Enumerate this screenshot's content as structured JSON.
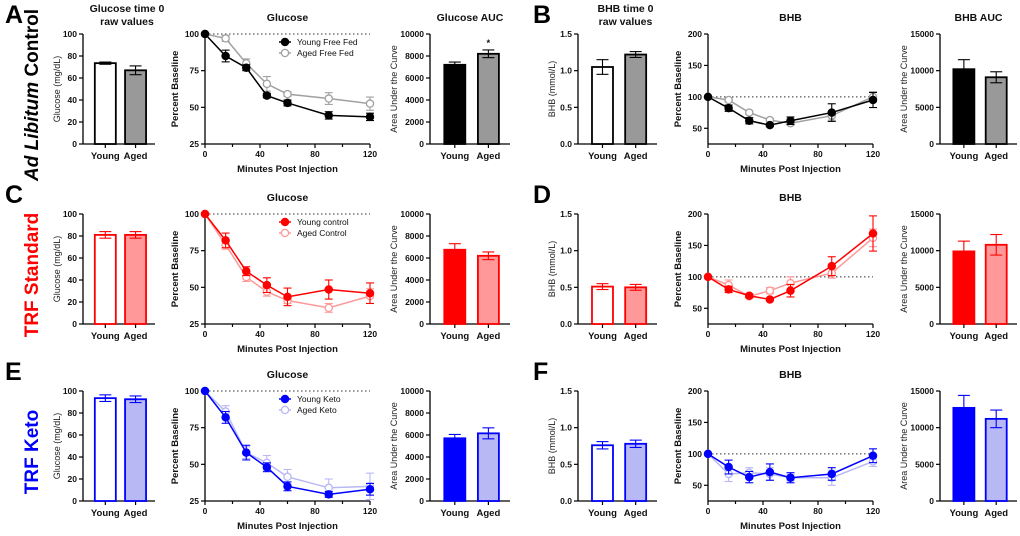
{
  "rows": [
    {
      "letters": [
        "A",
        "B"
      ],
      "label_parts": [
        {
          "text": "Ad Libitum",
          "italic": true
        },
        {
          "text": " Control",
          "italic": false
        }
      ],
      "color": "#000000"
    },
    {
      "letters": [
        "C",
        "D"
      ],
      "label_parts": [
        {
          "text": "TRF Standard",
          "italic": false
        }
      ],
      "color": "#ff0000"
    },
    {
      "letters": [
        "E",
        "F"
      ],
      "label_parts": [
        {
          "text": "TRF Keto",
          "italic": false
        }
      ],
      "color": "#0000ff"
    }
  ],
  "chart_data": [
    {
      "panel": "A",
      "type": "bar",
      "title": [
        "Glucose time 0",
        "raw values"
      ],
      "ylabel": "Glucose (mg/dL)",
      "ylim": [
        0,
        100
      ],
      "yticks": [
        "0",
        "20",
        "40",
        "60",
        "80",
        "100"
      ],
      "categories": [
        "Young",
        "Aged"
      ],
      "values": [
        73.5,
        67
      ],
      "errors": [
        1,
        4
      ],
      "fills": [
        "#ffffff",
        "#999999"
      ],
      "strokes": [
        "#000000",
        "#000000"
      ]
    },
    {
      "panel": "A",
      "type": "line",
      "title": [
        "Glucose"
      ],
      "ylabel": "Percent Baseline",
      "xlabel": "Minutes Post Injection",
      "ylim": [
        25,
        100
      ],
      "yticks": [
        "25",
        "50",
        "75",
        "100"
      ],
      "xlim": [
        0,
        120
      ],
      "xticks": [
        "0",
        "40",
        "80",
        "120"
      ],
      "reference_line": 100,
      "legend": true,
      "x": [
        0,
        15,
        30,
        45,
        60,
        90,
        120
      ],
      "series": [
        {
          "name": "Aged Free Fed",
          "color": "#a0a0a0",
          "marker": "open",
          "values": [
            100,
            97,
            80,
            66,
            59,
            56,
            52.5
          ],
          "errors": [
            0,
            2,
            3,
            5,
            1.5,
            4,
            4.5
          ]
        },
        {
          "name": "Young Free Fed",
          "color": "#000000",
          "marker": "filled",
          "values": [
            100,
            85,
            77,
            58,
            53,
            44.5,
            43.5
          ],
          "errors": [
            0,
            4,
            2,
            1.5,
            2,
            2.5,
            2.5
          ]
        }
      ]
    },
    {
      "panel": "A",
      "type": "bar",
      "title": [
        "Glucose AUC"
      ],
      "ylabel": "Area Under the Curve",
      "ylim": [
        0,
        10000
      ],
      "yticks": [
        "0",
        "2000",
        "4000",
        "6000",
        "8000",
        "10000"
      ],
      "categories": [
        "Young",
        "Aged"
      ],
      "values": [
        7200,
        8200
      ],
      "errors": [
        250,
        350
      ],
      "fills": [
        "#000000",
        "#999999"
      ],
      "strokes": [
        "#000000",
        "#000000"
      ],
      "annotations": [
        "",
        "*"
      ]
    },
    {
      "panel": "B",
      "type": "bar",
      "title": [
        "BHB time 0",
        "raw values"
      ],
      "ylabel": "BHB (mmol/L)",
      "ylim": [
        0,
        1.5
      ],
      "yticks": [
        "0.0",
        "0.5",
        "1.0",
        "1.5"
      ],
      "categories": [
        "Young",
        "Aged"
      ],
      "values": [
        1.05,
        1.22
      ],
      "errors": [
        0.1,
        0.04
      ],
      "fills": [
        "#ffffff",
        "#999999"
      ],
      "strokes": [
        "#000000",
        "#000000"
      ]
    },
    {
      "panel": "B",
      "type": "line",
      "title": [
        "BHB"
      ],
      "ylabel": "Percent Baseline",
      "xlabel": "Minutes Post Injection",
      "ylim": [
        25,
        200
      ],
      "yticks": [
        "50",
        "100",
        "150",
        "200"
      ],
      "xlim": [
        0,
        120
      ],
      "xticks": [
        "0",
        "40",
        "80",
        "120"
      ],
      "reference_line": 100,
      "legend": false,
      "x": [
        0,
        15,
        30,
        45,
        60,
        90,
        120
      ],
      "series": [
        {
          "name": "Aged Free Fed",
          "color": "#a0a0a0",
          "marker": "open",
          "values": [
            100,
            95,
            75,
            63,
            58,
            70,
            100
          ],
          "errors": [
            0,
            3,
            3,
            3,
            3,
            7,
            8
          ]
        },
        {
          "name": "Young Free Fed",
          "color": "#000000",
          "marker": "filled",
          "values": [
            100,
            82,
            62,
            55,
            62,
            75,
            95
          ],
          "errors": [
            0,
            5,
            5,
            2,
            6,
            14,
            12
          ]
        }
      ]
    },
    {
      "panel": "B",
      "type": "bar",
      "title": [
        "BHB AUC"
      ],
      "ylabel": "Area Under the Curve",
      "ylim": [
        0,
        15000
      ],
      "yticks": [
        "0",
        "5000",
        "10000",
        "15000"
      ],
      "categories": [
        "Young",
        "Aged"
      ],
      "values": [
        10200,
        9100
      ],
      "errors": [
        1300,
        750
      ],
      "fills": [
        "#000000",
        "#999999"
      ],
      "strokes": [
        "#000000",
        "#000000"
      ]
    },
    {
      "panel": "C",
      "type": "bar",
      "title": [],
      "ylabel": "Glucose (mg/dL)",
      "ylim": [
        0,
        100
      ],
      "yticks": [
        "0",
        "20",
        "40",
        "60",
        "80",
        "100"
      ],
      "categories": [
        "Young",
        "Aged"
      ],
      "values": [
        81,
        81
      ],
      "errors": [
        3,
        3
      ],
      "fills": [
        "#ffffff",
        "#ff9999"
      ],
      "strokes": [
        "#ff0000",
        "#ff0000"
      ]
    },
    {
      "panel": "C",
      "type": "line",
      "title": [
        "Glucose"
      ],
      "ylabel": "Percent Baseline",
      "xlabel": "Minutes Post Injection",
      "ylim": [
        25,
        100
      ],
      "yticks": [
        "25",
        "50",
        "75",
        "100"
      ],
      "xlim": [
        0,
        120
      ],
      "xticks": [
        "0",
        "40",
        "80",
        "120"
      ],
      "reference_line": 100,
      "legend": true,
      "x": [
        0,
        15,
        30,
        45,
        60,
        90,
        120
      ],
      "series": [
        {
          "name": "Aged Control",
          "color": "#ff9999",
          "marker": "open",
          "values": [
            100,
            79,
            57,
            47,
            41,
            36,
            44
          ],
          "errors": [
            0,
            3,
            3,
            3,
            2,
            3,
            5
          ]
        },
        {
          "name": "Young control",
          "color": "#ff0000",
          "marker": "filled",
          "values": [
            100,
            82,
            61,
            51.5,
            43.5,
            48.5,
            46
          ],
          "errors": [
            0,
            5,
            3,
            5,
            6,
            6.5,
            7
          ]
        }
      ]
    },
    {
      "panel": "C",
      "type": "bar",
      "title": [],
      "ylabel": "Area Under the Curve",
      "ylim": [
        0,
        10000
      ],
      "yticks": [
        "0",
        "2000",
        "4000",
        "6000",
        "8000",
        "10000"
      ],
      "categories": [
        "Young",
        "Aged"
      ],
      "values": [
        6750,
        6200
      ],
      "errors": [
        550,
        350
      ],
      "fills": [
        "#ff0000",
        "#ff9999"
      ],
      "strokes": [
        "#ff0000",
        "#ff0000"
      ]
    },
    {
      "panel": "D",
      "type": "bar",
      "title": [],
      "ylabel": "BHB (mmol/L)",
      "ylim": [
        0,
        1.5
      ],
      "yticks": [
        "0.0",
        "0.5",
        "1.0",
        "1.5"
      ],
      "categories": [
        "Young",
        "Aged"
      ],
      "values": [
        0.51,
        0.5
      ],
      "errors": [
        0.04,
        0.04
      ],
      "fills": [
        "#ffffff",
        "#ff9999"
      ],
      "strokes": [
        "#ff0000",
        "#ff0000"
      ]
    },
    {
      "panel": "D",
      "type": "line",
      "title": [
        "BHB"
      ],
      "ylabel": "Percent Baseline",
      "xlabel": "Minutes Post Injection",
      "ylim": [
        25,
        200
      ],
      "yticks": [
        "50",
        "100",
        "150",
        "200"
      ],
      "xlim": [
        0,
        120
      ],
      "xticks": [
        "0",
        "40",
        "80",
        "120"
      ],
      "reference_line": 100,
      "legend": false,
      "x": [
        0,
        15,
        30,
        45,
        60,
        90,
        120
      ],
      "series": [
        {
          "name": "Aged Control",
          "color": "#ff9999",
          "marker": "open",
          "values": [
            100,
            87,
            69,
            78,
            90,
            106,
            162
          ],
          "errors": [
            0,
            8,
            3,
            5,
            10,
            8,
            14
          ]
        },
        {
          "name": "Young control",
          "color": "#ff0000",
          "marker": "filled",
          "values": [
            100,
            80,
            70,
            64,
            78,
            117,
            169
          ],
          "errors": [
            0,
            5,
            3,
            2,
            10,
            15,
            28
          ]
        }
      ]
    },
    {
      "panel": "D",
      "type": "bar",
      "title": [],
      "ylabel": "Area Under the Curve",
      "ylim": [
        0,
        15000
      ],
      "yticks": [
        "0",
        "5000",
        "10000",
        "15000"
      ],
      "categories": [
        "Young",
        "Aged"
      ],
      "values": [
        9900,
        10800
      ],
      "errors": [
        1400,
        1400
      ],
      "fills": [
        "#ff0000",
        "#ff9999"
      ],
      "strokes": [
        "#ff0000",
        "#ff0000"
      ]
    },
    {
      "panel": "E",
      "type": "bar",
      "title": [],
      "ylabel": "Glucose (mg/dL)",
      "ylim": [
        0,
        100
      ],
      "yticks": [
        "0",
        "20",
        "40",
        "60",
        "80",
        "100"
      ],
      "categories": [
        "Young",
        "Aged"
      ],
      "values": [
        93.5,
        92.5
      ],
      "errors": [
        3,
        3
      ],
      "fills": [
        "#ffffff",
        "#b8b8f5"
      ],
      "strokes": [
        "#0000ff",
        "#0000ff"
      ]
    },
    {
      "panel": "E",
      "type": "line",
      "title": [
        "Glucose"
      ],
      "ylabel": "Percent Baseline",
      "xlabel": "Minutes Post Injection",
      "ylim": [
        25,
        100
      ],
      "yticks": [
        "25",
        "50",
        "75",
        "100"
      ],
      "xlim": [
        0,
        120
      ],
      "xticks": [
        "0",
        "40",
        "80",
        "120"
      ],
      "reference_line": 100,
      "legend": true,
      "x": [
        0,
        15,
        30,
        45,
        60,
        90,
        120
      ],
      "series": [
        {
          "name": "Aged Keto",
          "color": "#b8b8f5",
          "marker": "open",
          "values": [
            100,
            86,
            58,
            51,
            41.5,
            34,
            35
          ],
          "errors": [
            0,
            4,
            4,
            5,
            5,
            6,
            9
          ]
        },
        {
          "name": "Young Keto",
          "color": "#0000ff",
          "marker": "filled",
          "values": [
            100,
            82,
            58,
            48,
            35,
            29.5,
            33
          ],
          "errors": [
            0,
            4,
            5,
            3,
            3,
            2,
            4
          ]
        }
      ]
    },
    {
      "panel": "E",
      "type": "bar",
      "title": [],
      "ylabel": "Area Under the Curve",
      "ylim": [
        0,
        10000
      ],
      "yticks": [
        "0",
        "2000",
        "4000",
        "6000",
        "8000",
        "10000"
      ],
      "categories": [
        "Young",
        "Aged"
      ],
      "values": [
        5700,
        6150
      ],
      "errors": [
        350,
        500
      ],
      "fills": [
        "#0000ff",
        "#b8b8f5"
      ],
      "strokes": [
        "#0000ff",
        "#0000ff"
      ]
    },
    {
      "panel": "F",
      "type": "bar",
      "title": [],
      "ylabel": "BHB (mmol/L)",
      "ylim": [
        0,
        1.5
      ],
      "yticks": [
        "0.0",
        "0.5",
        "1.0",
        "1.5"
      ],
      "categories": [
        "Young",
        "Aged"
      ],
      "values": [
        0.76,
        0.78
      ],
      "errors": [
        0.05,
        0.05
      ],
      "fills": [
        "#ffffff",
        "#b8b8f5"
      ],
      "strokes": [
        "#0000ff",
        "#0000ff"
      ]
    },
    {
      "panel": "F",
      "type": "line",
      "title": [
        "BHB"
      ],
      "ylabel": "Percent Baseline",
      "xlabel": "Minutes Post Injection",
      "ylim": [
        25,
        200
      ],
      "yticks": [
        "50",
        "100",
        "150",
        "200"
      ],
      "xlim": [
        0,
        120
      ],
      "xticks": [
        "0",
        "40",
        "80",
        "120"
      ],
      "reference_line": 100,
      "legend": false,
      "x": [
        0,
        15,
        30,
        45,
        60,
        90,
        120
      ],
      "series": [
        {
          "name": "Aged Keto",
          "color": "#b8b8f5",
          "marker": "open",
          "values": [
            100,
            68,
            70,
            68,
            62,
            62,
            88
          ],
          "errors": [
            0,
            12,
            8,
            10,
            5,
            12,
            8
          ]
        },
        {
          "name": "Young Keto",
          "color": "#0000ff",
          "marker": "filled",
          "values": [
            100,
            79,
            63,
            71,
            62,
            68,
            97
          ],
          "errors": [
            0,
            11,
            9,
            13,
            8,
            10,
            11
          ]
        }
      ]
    },
    {
      "panel": "F",
      "type": "bar",
      "title": [],
      "ylabel": "Area Under the Curve",
      "ylim": [
        0,
        15000
      ],
      "yticks": [
        "0",
        "5000",
        "10000",
        "15000"
      ],
      "categories": [
        "Young",
        "Aged"
      ],
      "values": [
        12700,
        11200
      ],
      "errors": [
        1700,
        1200
      ],
      "fills": [
        "#0000ff",
        "#b8b8f5"
      ],
      "strokes": [
        "#0000ff",
        "#0000ff"
      ]
    }
  ]
}
